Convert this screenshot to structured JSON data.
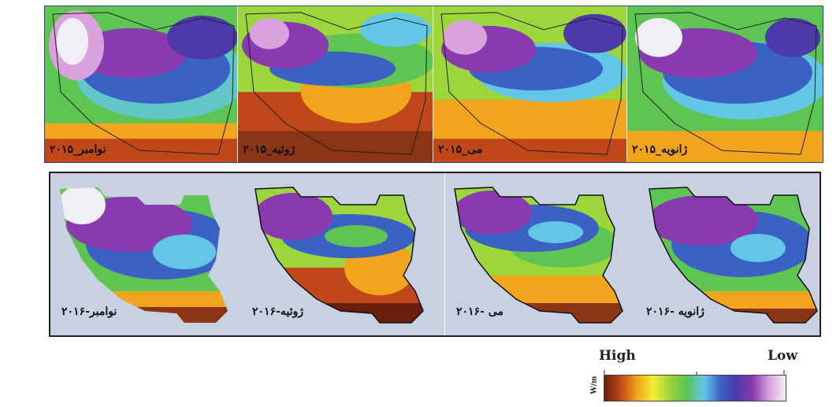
{
  "row_2015": [
    {
      "label": "نوامبر_۲۰۱۵"
    },
    {
      "label": "ژوئیه_۲۰۱۵"
    },
    {
      "label": "می_۲۰۱۵"
    },
    {
      "label": "ژانویه_۲۰۱۵"
    }
  ],
  "row_2016": [
    {
      "label": "نوامبر-۲۰۱۶"
    },
    {
      "label": "ژوئیه-۲۰۱۶"
    },
    {
      "label": "می -۲۰۱۶"
    },
    {
      "label": "ژانویه -۲۰۱۶"
    }
  ],
  "legend": {
    "high": "High",
    "low": "Low",
    "unit": "W/m",
    "colors": [
      "#6a1f0c",
      "#c0471a",
      "#f2a51c",
      "#f3ee32",
      "#9cd63a",
      "#5ec452",
      "#62c7e6",
      "#3a62c4",
      "#4b3aa8",
      "#8a3ab0",
      "#d9a2dd",
      "#f2eef6"
    ]
  }
}
